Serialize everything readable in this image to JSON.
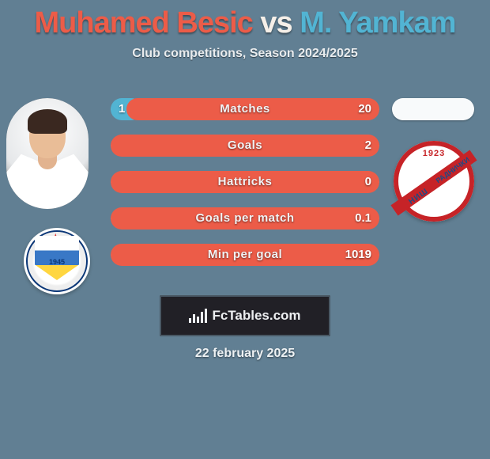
{
  "title": {
    "player_a": "Muhamed Besic",
    "vs": "vs",
    "player_b": "M. Yamkam"
  },
  "subtitle": "Club competitions, Season 2024/2025",
  "colors": {
    "player_a": "#52b4d3",
    "player_b": "#ec5c48",
    "background": "#617f93",
    "track": "#d9dde0"
  },
  "stats": [
    {
      "label": "Matches",
      "a": "1",
      "b": "20",
      "a_w": 40,
      "b_w": 320
    },
    {
      "label": "Goals",
      "a": "",
      "b": "2",
      "a_w": 0,
      "b_w": 340
    },
    {
      "label": "Hattricks",
      "a": "",
      "b": "0",
      "a_w": 0,
      "b_w": 340
    },
    {
      "label": "Goals per match",
      "a": "",
      "b": "0.1",
      "a_w": 0,
      "b_w": 340
    },
    {
      "label": "Min per goal",
      "a": "",
      "b": "1019",
      "a_w": 0,
      "b_w": 340
    }
  ],
  "crests": {
    "a_year": "1945",
    "b_year": "1923",
    "b_text1": "РАДНИЧКИ",
    "b_text2": "НИШ"
  },
  "watermark": "FcTables.com",
  "date": "22 february 2025"
}
